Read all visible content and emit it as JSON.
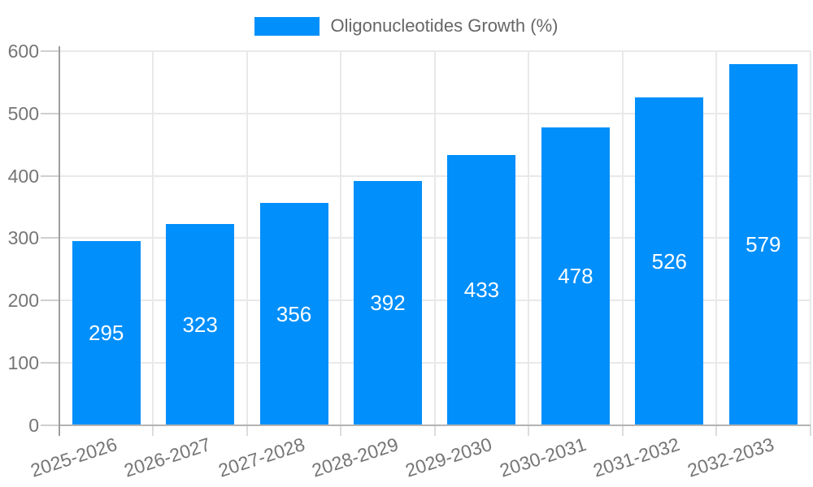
{
  "chart_data": {
    "type": "bar",
    "title": "",
    "xlabel": "",
    "ylabel": "",
    "categories": [
      "2025-2026",
      "2026-2027",
      "2027-2028",
      "2028-2029",
      "2029-2030",
      "2030-2031",
      "2031-2032",
      "2032-2033"
    ],
    "series": [
      {
        "name": "Oligonucleotides Growth (%)",
        "values": [
          295,
          323,
          356,
          392,
          433,
          478,
          526,
          579
        ]
      }
    ],
    "value_labels": [
      "295",
      "323",
      "356",
      "392",
      "433",
      "478",
      "526",
      "579"
    ],
    "ylim": [
      0,
      600
    ],
    "yticks": [
      0,
      100,
      200,
      300,
      400,
      500,
      600
    ],
    "ytick_labels": [
      "0",
      "100",
      "200",
      "300",
      "400",
      "500",
      "600"
    ],
    "grid": true,
    "legend_position": "top-center",
    "colors": {
      "bar": "#008FFB",
      "value_label": "#ffffff",
      "axis_label": "#757575",
      "legend_text": "#666666"
    }
  }
}
